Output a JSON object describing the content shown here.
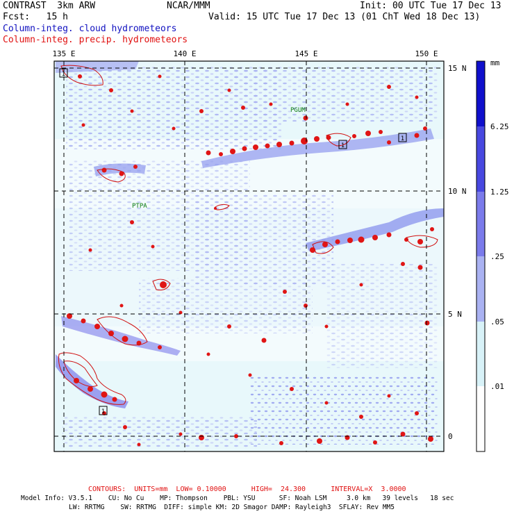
{
  "header": {
    "model": "CONTRAST  3km ARW",
    "org": "NCAR/MMM",
    "init": "Init: 00 UTC Tue 17 Dec 13",
    "fcst": "Fcst:   15 h",
    "valid": "Valid: 15 UTC Tue 17 Dec 13 (01 ChT Wed 18 Dec 13)",
    "field_cloud": "Column-integ. cloud hydrometeors",
    "field_precip": "Column-integ. precip. hydrometeors"
  },
  "map": {
    "lon_labels": [
      "135 E",
      "140 E",
      "145 E",
      "150 E"
    ],
    "lat_labels": [
      "15 N",
      "10 N",
      "5 N",
      "0"
    ],
    "stations": [
      "PGUM",
      "PTPA"
    ],
    "box_markers": [
      "1",
      "1",
      "1",
      "1"
    ]
  },
  "colorbar": {
    "unit": "mm",
    "labels": [
      "6.25",
      "1.25",
      ".25",
      ".05",
      ".01"
    ],
    "colors": [
      "#1010cc",
      "#4848e0",
      "#7b7beb",
      "#aab2f2",
      "#d8f2f8",
      "#ffffff"
    ]
  },
  "footer": {
    "contours_label": "CONTOURS:  UNITS=mm  LOW= 0.10000      HIGH=  24.300      INTERVAL=X  3.0000",
    "model_info_1": "Model Info: V3.5.1    CU: No Cu    MP: Thompson    PBL: YSU      SF: Noah LSM     3.0 km   39 levels   18 sec",
    "model_info_2": "LW: RRTMG    SW: RRTMG  DIFF: simple KM: 2D Smagor DAMP: Rayleigh3  SFLAY: Rev MM5"
  }
}
